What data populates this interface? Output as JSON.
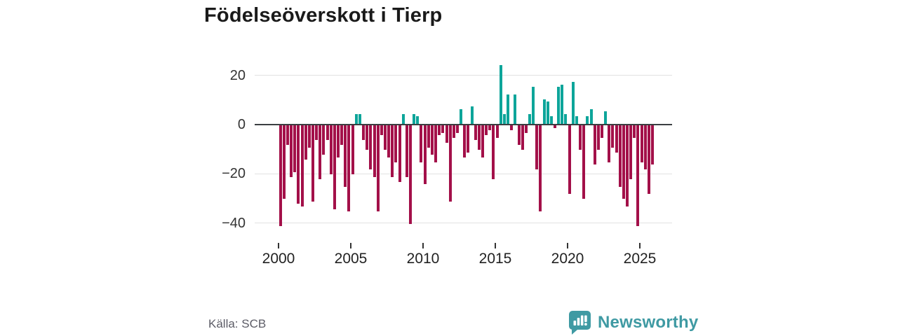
{
  "title": "Födelseöverskott i Tierp",
  "source": "Källa: SCB",
  "logo": {
    "brand": "Newsworthy"
  },
  "chart_data": {
    "type": "bar",
    "title": "Födelseöverskott i Tierp",
    "xlabel": "",
    "ylabel": "",
    "frequency": "quarterly",
    "start_period": "2000Q1",
    "end_period": "2025Q4",
    "x_tick_years": [
      2000,
      2005,
      2010,
      2015,
      2020,
      2025
    ],
    "y_ticks": [
      20,
      0,
      -20,
      -40
    ],
    "ylim": [
      -44,
      26
    ],
    "grid": true,
    "colors": {
      "positive": "#0da59a",
      "negative": "#a31049",
      "zero_axis": "#3b3f42",
      "grid": "#e2e2e2",
      "logo_teal": "#3f9aa3"
    },
    "values": [
      -41,
      -30,
      -8,
      -21,
      -19,
      -32,
      -33,
      -14,
      -9,
      -31,
      -6,
      -22,
      -12,
      -6,
      -20,
      -34,
      -13,
      -8,
      -25,
      -35,
      -20,
      4,
      4,
      -6,
      -10,
      -18,
      -21,
      -35,
      -4,
      -10,
      -13,
      -21,
      -15,
      -23,
      4,
      -21,
      -40,
      4,
      3,
      -15,
      -24,
      -9,
      -12,
      -15,
      -4,
      -3,
      -7,
      -31,
      -5,
      -3,
      6,
      -13,
      -11,
      7,
      -6,
      -10,
      -13,
      -4,
      -2,
      -22,
      -5,
      24,
      4,
      12,
      -2,
      12,
      -8,
      -10,
      -3,
      4,
      15,
      -18,
      -35,
      10,
      9,
      3,
      -1,
      15,
      16,
      4,
      -28,
      17,
      3,
      -10,
      -30,
      3,
      6,
      -16,
      -10,
      -5,
      5,
      -15,
      -9,
      -11,
      -25,
      -30,
      -33,
      -22,
      -5,
      -41,
      -15,
      -18,
      -28,
      -16
    ]
  }
}
